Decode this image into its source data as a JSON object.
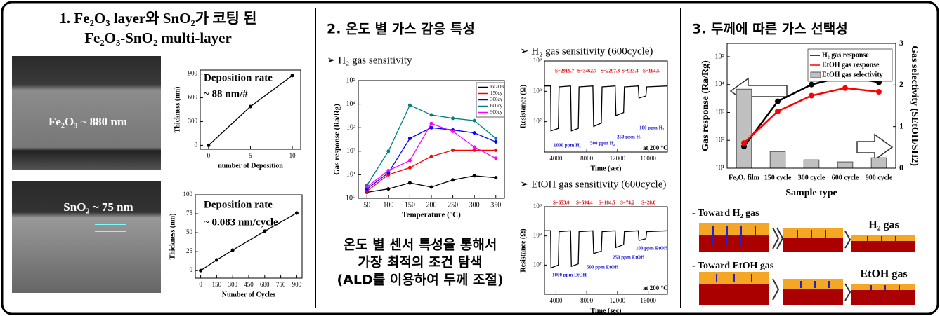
{
  "panels": [
    {
      "title_lines": [
        "1. Fe₂O₃ layer와 SnO₂가 코팅 된",
        "Fe₂O₃-SnO₂ multi-layer"
      ],
      "image_labels": [
        "Fe₂O₃ ~ 880 nm",
        "SnO₂ ~ 75 nm"
      ]
    },
    {
      "title_lines": [
        "2. 온도 별 가스 감응 특성"
      ],
      "summary_lines": [
        "온도 별 센서 특성을 통해서",
        "가장 최적의 조건 탐색",
        "(ALD를 이용하여 두께 조절)"
      ]
    },
    {
      "title_lines": [
        "3. 두께에 따른 가스 선택성"
      ],
      "schematic_labels": [
        "- Toward H₂ gas",
        "H₂ gas",
        "- Toward EtOH gas",
        "EtOH gas"
      ]
    }
  ],
  "chart_data": [
    {
      "type": "line",
      "xlabel": "number of Deposition",
      "ylabel": "Thickness (nm)",
      "x": [
        0,
        5,
        10
      ],
      "series": [
        {
          "name": "Thickness",
          "color": "#000000",
          "values": [
            0,
            490,
            880
          ]
        }
      ],
      "xlim": [
        -1,
        11
      ],
      "ylim": [
        -50,
        950
      ],
      "xticks": [
        0,
        5,
        10
      ],
      "yticks": [
        0,
        300,
        600,
        900
      ],
      "annotations": [
        "Deposition rate",
        "~ 88 nm/#"
      ]
    },
    {
      "type": "line",
      "xlabel": "Number of Cycles",
      "ylabel": "Thickness (nm)",
      "x": [
        0,
        150,
        300,
        600,
        900
      ],
      "series": [
        {
          "name": "Thickness",
          "color": "#000000",
          "values": [
            0,
            14,
            27,
            52,
            76
          ]
        }
      ],
      "xlim": [
        -50,
        950
      ],
      "ylim": [
        -10,
        100
      ],
      "xticks": [
        0,
        150,
        300,
        450,
        600,
        750,
        900
      ],
      "yticks": [
        0,
        25,
        50,
        75,
        100
      ],
      "annotations": [
        "Deposition rate",
        "~ 0.083 nm/cycle"
      ]
    },
    {
      "type": "line",
      "title": "➢ H₂ gas sensitivity",
      "xlabel": "Temperature (°C)",
      "ylabel": "Gas response (Ra/Rg)",
      "x": [
        50,
        100,
        150,
        200,
        250,
        300,
        350
      ],
      "series": [
        {
          "name": "Fe2O3",
          "color": "#000000",
          "values": [
            1.8,
            2.5,
            4.5,
            3,
            6,
            9,
            7.5
          ]
        },
        {
          "name": "150cy",
          "color": "#ff0000",
          "values": [
            2,
            10,
            20,
            60,
            110,
            110,
            110
          ]
        },
        {
          "name": "300cy",
          "color": "#0000ff",
          "values": [
            2.5,
            12,
            350,
            1000,
            800,
            600,
            250
          ]
        },
        {
          "name": "600cy",
          "color": "#008080",
          "values": [
            3.5,
            100,
            9000,
            3500,
            2500,
            2000,
            350
          ]
        },
        {
          "name": "900cy",
          "color": "#ff00ff",
          "values": [
            3,
            15,
            40,
            1500,
            700,
            150,
            50
          ]
        }
      ],
      "xlim": [
        30,
        370
      ],
      "ylim": [
        1,
        100000
      ],
      "log_y": true,
      "xticks": [
        50,
        100,
        150,
        200,
        250,
        300,
        350
      ],
      "yticks": [
        {
          "value": 1,
          "label": "10⁰"
        },
        {
          "value": 10,
          "label": "10¹"
        },
        {
          "value": 100,
          "label": "10²"
        },
        {
          "value": 1000,
          "label": "10³"
        },
        {
          "value": 10000,
          "label": "10⁴"
        },
        {
          "value": 100000,
          "label": "10⁵"
        }
      ],
      "legend": "upper-right"
    },
    {
      "type": "line",
      "title": "➢ H₂ gas sensitivity (600cycle)",
      "xlabel": "Time (sec)",
      "ylabel": "Resistance (Ω)",
      "x": [
        2500,
        3300,
        3350,
        4300,
        4400,
        5900,
        6000,
        6900,
        7000,
        8800,
        8900,
        9900,
        10000,
        11700,
        11800,
        12800,
        12900,
        14700,
        14800,
        15700,
        15800,
        18500
      ],
      "series": [
        {
          "name": "H₂",
          "color": "#000000",
          "values": [
            150000000,
            150000000,
            5000000,
            6000000,
            140000000,
            150000000,
            5000000,
            6000000,
            140000000,
            150000000,
            7000000,
            9000000,
            140000000,
            150000000,
            16000000,
            20000000,
            140000000,
            150000000,
            60000000,
            70000000,
            140000000,
            150000000
          ]
        }
      ],
      "xlim": [
        2500,
        18500
      ],
      "ylim": [
        1000000,
        1000000000
      ],
      "log_y": true,
      "xticks": [
        4000,
        8000,
        12000,
        16000
      ],
      "yticks": [
        {
          "value": 10000000,
          "label": "10⁷"
        },
        {
          "value": 100000000,
          "label": "10⁸"
        },
        {
          "value": 1000000000,
          "label": "10⁹"
        }
      ],
      "annotations": [
        "S=2919.7",
        "S=3462.7",
        "S=2297.3",
        "S=933.3",
        "S=164.5",
        "1000 ppm H₂",
        "500 ppm H₂",
        "250 ppm H₂",
        "100 ppm H₂",
        "at 200 °C"
      ]
    },
    {
      "type": "line",
      "title": "➢ EtOH gas sensitivity (600cycle)",
      "xlabel": "Time (sec)",
      "ylabel": "Resistance (Ω)",
      "x": [
        2500,
        3300,
        3350,
        4300,
        4400,
        5900,
        6000,
        6900,
        7000,
        8800,
        8900,
        9900,
        10000,
        11700,
        11800,
        12800,
        12900,
        14700,
        14800,
        15700,
        15800,
        18500
      ],
      "series": [
        {
          "name": "EtOH",
          "color": "#000000",
          "values": [
            150000000,
            150000000,
            8000000,
            10000000,
            140000000,
            150000000,
            9000000,
            11000000,
            140000000,
            150000000,
            25000000,
            30000000,
            140000000,
            150000000,
            40000000,
            50000000,
            140000000,
            150000000,
            70000000,
            80000000,
            140000000,
            150000000
          ]
        }
      ],
      "xlim": [
        2500,
        18500
      ],
      "ylim": [
        1000000,
        1000000000
      ],
      "log_y": true,
      "xticks": [
        4000,
        8000,
        12000,
        16000
      ],
      "yticks": [
        {
          "value": 10000000,
          "label": "10⁷"
        },
        {
          "value": 100000000,
          "label": "10⁸"
        },
        {
          "value": 1000000000,
          "label": "10⁹"
        }
      ],
      "annotations": [
        "S=653.0",
        "S=594.4",
        "S=184.5",
        "S=74.2",
        "S=28.0",
        "1000 ppm EtOH",
        "500 ppm EtOH",
        "250 ppm EtOH",
        "100 ppm EtOH",
        "at 200 °C"
      ]
    },
    {
      "type": "combo",
      "xlabel": "Sample type",
      "ylabel": "Gas response (Ra/Rg)",
      "y2label": "Gas selectivity (SEtOH/SH2)",
      "categories": [
        "Fe₂O₃ film",
        "150 cycle",
        "300 cycle",
        "600 cycle",
        "900 cycle"
      ],
      "series": [
        {
          "name": "H₂ gas response",
          "color": "#000000",
          "values": [
            60,
            2500,
            10000,
            20000,
            12000
          ]
        },
        {
          "name": "EtOH gas response",
          "color": "#ff0000",
          "values": [
            80,
            1100,
            4000,
            7500,
            5500
          ]
        },
        {
          "name": "EtOH gas selectivity",
          "color": "#c0c0c0",
          "values": [
            1.9,
            0.4,
            0.2,
            0.15,
            0.25
          ],
          "axis": "y2"
        }
      ],
      "ylim": [
        10,
        300000
      ],
      "log_y": true,
      "yticks": [
        {
          "value": 10,
          "label": "10¹"
        },
        {
          "value": 100,
          "label": "10²"
        },
        {
          "value": 1000,
          "label": "10³"
        },
        {
          "value": 10000,
          "label": "10⁴"
        },
        {
          "value": 100000,
          "label": "10⁵"
        }
      ],
      "y2lim": [
        0,
        3
      ],
      "y2ticks": [
        0,
        1,
        2,
        3
      ],
      "legend": "upper-right"
    }
  ]
}
